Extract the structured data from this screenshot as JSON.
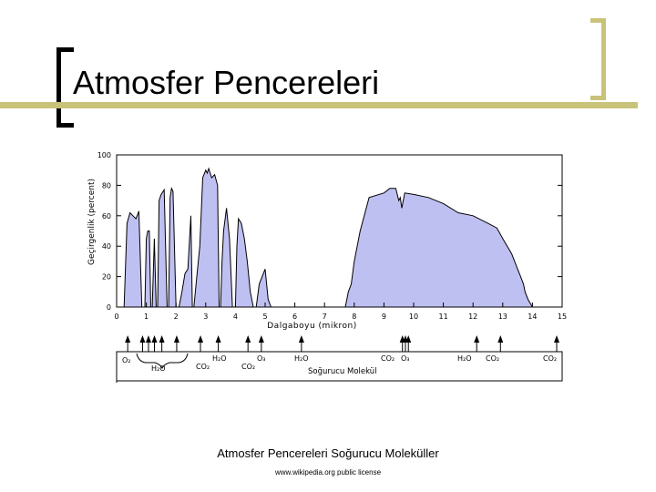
{
  "slide": {
    "title": "Atmosfer Pencereleri",
    "caption": "Atmosfer Pencereleri Soğurucu Moleküller",
    "license": "www.wikipedia.org public license"
  },
  "colors": {
    "accent": "#c9c27a",
    "fill": "#bfc0f2",
    "line": "#000000"
  },
  "chart_data": {
    "type": "area",
    "title": "",
    "xlabel": "Dalgaboyu (mikron)",
    "ylabel": "Geçirgenlik (percent)",
    "xlim": [
      0,
      15
    ],
    "ylim": [
      0,
      100
    ],
    "xticks": [
      0,
      1,
      2,
      3,
      4,
      5,
      6,
      7,
      8,
      9,
      10,
      11,
      12,
      13,
      14,
      15
    ],
    "yticks": [
      0,
      20,
      40,
      60,
      80,
      100
    ],
    "grid": false,
    "series": [
      {
        "x": [
          0.25,
          0.35,
          0.45,
          0.55,
          0.65,
          0.75,
          0.85,
          0.95,
          1.0,
          1.05,
          1.1,
          1.15,
          1.2,
          1.27,
          1.33,
          1.38,
          1.43,
          1.5,
          1.6,
          1.7,
          1.75,
          1.8,
          1.85,
          1.9,
          2.0,
          2.1,
          2.2,
          2.3,
          2.4,
          2.5,
          2.55,
          2.6,
          2.7,
          2.8,
          2.9,
          3.0,
          3.05,
          3.1,
          3.2,
          3.3,
          3.4,
          3.45,
          3.5,
          3.55,
          3.6,
          3.7,
          3.8,
          3.9,
          4.0,
          4.05,
          4.1,
          4.2,
          4.3,
          4.4,
          4.5,
          4.6,
          4.7,
          4.8,
          4.9,
          5.0,
          5.1,
          5.2,
          5.3,
          5.35,
          5.4,
          7.7,
          7.75,
          7.8,
          7.9,
          8.0,
          8.2,
          8.5,
          9.0,
          9.2,
          9.4,
          9.5,
          9.55,
          9.6,
          9.7,
          10.0,
          10.5,
          11.0,
          11.5,
          12.0,
          12.5,
          12.8,
          13.0,
          13.3,
          13.5,
          13.6,
          13.7,
          13.75,
          13.85,
          14.0,
          14.3
        ],
        "y": [
          0,
          55,
          62,
          60,
          58,
          63,
          0,
          0,
          45,
          50,
          50,
          0,
          0,
          45,
          0,
          0,
          70,
          74,
          77,
          0,
          0,
          72,
          78,
          76,
          0,
          0,
          10,
          22,
          25,
          60,
          0,
          0,
          20,
          40,
          85,
          90,
          88,
          91,
          85,
          87,
          80,
          0,
          0,
          30,
          50,
          65,
          45,
          0,
          0,
          40,
          58,
          55,
          45,
          30,
          10,
          0,
          0,
          15,
          20,
          25,
          5,
          0,
          0,
          0,
          0,
          0,
          5,
          10,
          15,
          30,
          50,
          72,
          75,
          78,
          78,
          70,
          72,
          65,
          75,
          74,
          72,
          68,
          62,
          60,
          55,
          52,
          45,
          35,
          25,
          20,
          15,
          10,
          5,
          0,
          0
        ]
      }
    ],
    "absorbers": {
      "labels": [
        "O₂",
        "H₂O",
        "CO₂",
        "H₂O",
        "CO₂",
        "O₃",
        "H₂O",
        "CO₂",
        "O₃",
        "H₂O",
        "CO₂",
        "CO₂"
      ],
      "arrow_positions": [
        0.25,
        0.75,
        0.95,
        1.15,
        1.4,
        1.9,
        2.7,
        3.3,
        4.3,
        4.75,
        6.1,
        9.5,
        9.6,
        9.7,
        12.0,
        12.8,
        15.0
      ],
      "footer": "Soğurucu Molekül"
    }
  }
}
